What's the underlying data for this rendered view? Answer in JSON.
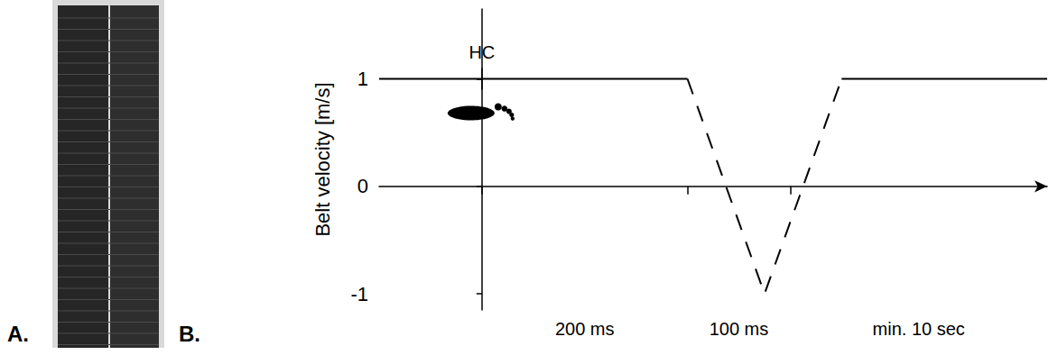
{
  "chart_data": {
    "type": "line",
    "panel_labels": [
      "A.",
      "B."
    ],
    "ylabel": "Belt velocity [m/s]",
    "ylim": [
      -1.15,
      1.65
    ],
    "yticks": [
      -1,
      0,
      1
    ],
    "xlim": [
      -100,
      550
    ],
    "xticks": [
      0,
      200,
      300
    ],
    "tick_labels": "y",
    "grid": false,
    "series": [
      {
        "line_style": "solid",
        "color": "#000000",
        "x": [
          -100,
          200,
          275,
          350,
          550
        ],
        "values": [
          1,
          1,
          null,
          1,
          1
        ]
      },
      {
        "line_style": "dashed",
        "color": "#000000",
        "x": [
          200,
          275,
          350
        ],
        "values": [
          1,
          -1,
          1
        ]
      }
    ],
    "annotations": [
      {
        "text": "HC",
        "x": 0,
        "y": 1
      }
    ],
    "x_intervals": [
      {
        "from": 0,
        "to": 200,
        "label": "200 ms"
      },
      {
        "from": 200,
        "to": 300,
        "label": "100 ms"
      },
      {
        "from": 300,
        "label": "min. 10 sec"
      }
    ]
  }
}
